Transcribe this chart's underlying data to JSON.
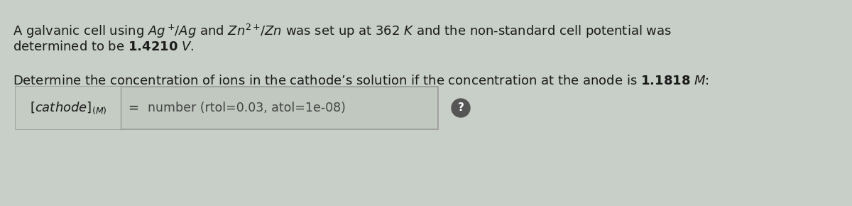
{
  "bg_color": "#c8cfc8",
  "line1": "A galvanic cell using $Ag^+\\!/Ag$ and $Zn^{2+}\\!/Zn$ was set up at $362\\ K$ and the non-standard cell potential was",
  "line2": "determined to be $\\mathbf{1.4210}$ $V$.",
  "line3": "Determine the concentration of ions in the cathode’s solution if the concentration at the anode is $\\mathbf{1.1818}$ $M$:",
  "box_label": "$[cathode]_{(M)}$",
  "equals": "=",
  "placeholder": "number (rtol=0.03, atol=1e-08)",
  "font_size_main": 13.0,
  "text_color": "#1a1a1a",
  "outer_box_bg": "#c0c8c0",
  "label_bg": "#c4ccc4",
  "input_bg": "#c8d0c8",
  "box_border": "#999999",
  "placeholder_color": "#444444",
  "circle_color": "#555555"
}
